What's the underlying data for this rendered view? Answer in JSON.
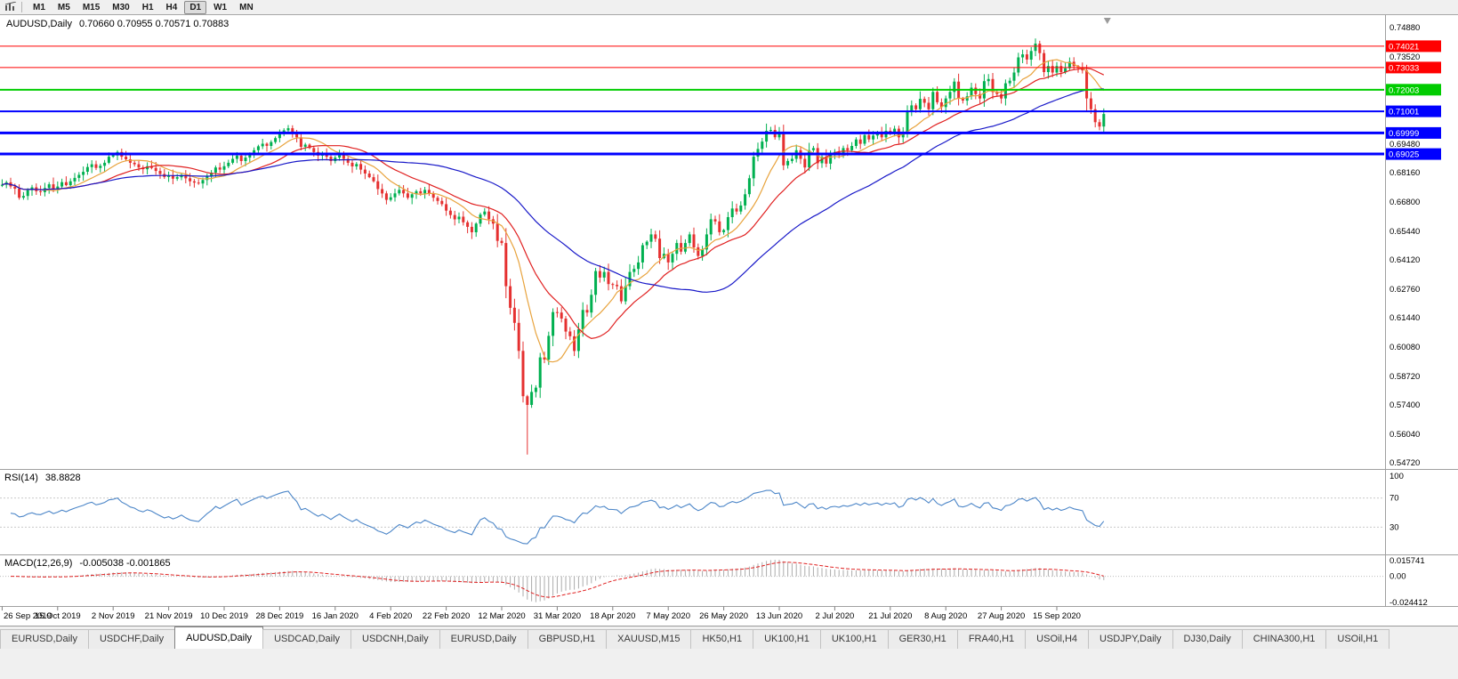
{
  "toolbar": {
    "timeframes": [
      "M1",
      "M5",
      "M15",
      "M30",
      "H1",
      "H4",
      "D1",
      "W1",
      "MN"
    ],
    "active_timeframe": "D1"
  },
  "chart": {
    "title": "AUDUSD,Daily",
    "ohlc": "0.70660 0.70955 0.70571 0.70883",
    "colors": {
      "up": "#00B050",
      "down": "#E53030",
      "macd_hist": "#ababab",
      "macd_signal": "#e02020"
    },
    "axis_labels": [
      "0.74880",
      "0.73520",
      "0.69480",
      "0.68160",
      "0.66800",
      "0.65440",
      "0.64120",
      "0.62760",
      "0.61440",
      "0.60080",
      "0.58720",
      "0.57400",
      "0.56040",
      "0.54720"
    ],
    "hlines": [
      {
        "price": 0.74021,
        "color": "#FF0000",
        "width": 1,
        "label": "0.74021"
      },
      {
        "price": 0.73033,
        "color": "#FF0000",
        "width": 1,
        "label": "0.73033"
      },
      {
        "price": 0.72003,
        "color": "#00CC00",
        "width": 2,
        "label": "0.72003"
      },
      {
        "price": 0.71001,
        "color": "#0000FF",
        "width": 2,
        "label": "0.71001"
      },
      {
        "price": 0.69999,
        "color": "#0000FF",
        "width": 3,
        "label": "0.69999"
      },
      {
        "price": 0.69025,
        "color": "#0000FF",
        "width": 3,
        "label": "0.69025"
      }
    ]
  },
  "chart_data": {
    "type": "candlestick",
    "symbol": "AUDUSD",
    "timeframe": "Daily",
    "ohlc_display": {
      "open": "0.70660",
      "high": "0.70955",
      "low": "0.70571",
      "close": "0.70883"
    },
    "ylim": [
      0.5443,
      0.7546
    ],
    "first_open": 0.6755,
    "closes": [
      0.676,
      0.6771,
      0.6752,
      0.6742,
      0.67,
      0.6708,
      0.6735,
      0.6748,
      0.673,
      0.6726,
      0.6745,
      0.6762,
      0.6738,
      0.6752,
      0.6772,
      0.6758,
      0.6776,
      0.6792,
      0.6806,
      0.682,
      0.6842,
      0.6855,
      0.6838,
      0.6848,
      0.6862,
      0.689,
      0.6896,
      0.6912,
      0.689,
      0.6878,
      0.6862,
      0.6855,
      0.684,
      0.6832,
      0.6846,
      0.6838,
      0.6824,
      0.681,
      0.6796,
      0.6802,
      0.6788,
      0.6795,
      0.6806,
      0.679,
      0.6776,
      0.677,
      0.6766,
      0.6782,
      0.68,
      0.6816,
      0.684,
      0.683,
      0.6846,
      0.6862,
      0.688,
      0.6895,
      0.687,
      0.6886,
      0.6902,
      0.692,
      0.6938,
      0.695,
      0.694,
      0.6958,
      0.6976,
      0.6995,
      0.7012,
      0.7022,
      0.7,
      0.698,
      0.6936,
      0.6946,
      0.693,
      0.6912,
      0.6895,
      0.6906,
      0.689,
      0.687,
      0.6886,
      0.69,
      0.688,
      0.6862,
      0.6845,
      0.6856,
      0.683,
      0.6812,
      0.6795,
      0.6776,
      0.674,
      0.672,
      0.669,
      0.6702,
      0.672,
      0.6736,
      0.672,
      0.67,
      0.6716,
      0.673,
      0.672,
      0.6736,
      0.672,
      0.67,
      0.6685,
      0.667,
      0.664,
      0.662,
      0.66,
      0.6612,
      0.6586,
      0.6565,
      0.654,
      0.658,
      0.6622,
      0.6636,
      0.66,
      0.658,
      0.65,
      0.649,
      0.629,
      0.619,
      0.612,
      0.599,
      0.578,
      0.574,
      0.58,
      0.582,
      0.596,
      0.595,
      0.606,
      0.617,
      0.6168,
      0.614,
      0.608,
      0.6058,
      0.599,
      0.609,
      0.618,
      0.6168,
      0.625,
      0.636,
      0.633,
      0.6356,
      0.63,
      0.6296,
      0.629,
      0.622,
      0.629,
      0.6356,
      0.637,
      0.64,
      0.648,
      0.6496,
      0.653,
      0.651,
      0.642,
      0.644,
      0.64,
      0.644,
      0.649,
      0.645,
      0.649,
      0.653,
      0.647,
      0.643,
      0.646,
      0.653,
      0.66,
      0.659,
      0.654,
      0.655,
      0.661,
      0.665,
      0.6636,
      0.6664,
      0.6716,
      0.679,
      0.689,
      0.6926,
      0.696,
      0.701,
      0.7014,
      0.698,
      0.7,
      0.685,
      0.687,
      0.688,
      0.692,
      0.688,
      0.684,
      0.692,
      0.693,
      0.686,
      0.689,
      0.6858,
      0.69,
      0.6912,
      0.69,
      0.693,
      0.692,
      0.694,
      0.697,
      0.695,
      0.699,
      0.697,
      0.6988,
      0.7,
      0.698,
      0.701,
      0.7,
      0.702,
      0.698,
      0.7,
      0.71,
      0.7128,
      0.711,
      0.7158,
      0.714,
      0.711,
      0.719,
      0.7142,
      0.712,
      0.716,
      0.719,
      0.7238,
      0.716,
      0.715,
      0.717,
      0.721,
      0.718,
      0.716,
      0.724,
      0.725,
      0.719,
      0.718,
      0.716,
      0.723,
      0.7242,
      0.728,
      0.735,
      0.7364,
      0.734,
      0.738,
      0.7414,
      0.737,
      0.7282,
      0.731,
      0.728,
      0.731,
      0.7282,
      0.73,
      0.733,
      0.731,
      0.73,
      0.729,
      0.716,
      0.711,
      0.705,
      0.703,
      0.7088
    ],
    "overrides": [
      {
        "i": 123,
        "low": 0.551
      },
      {
        "i": 242,
        "high": 0.7438
      }
    ],
    "moving_averages": [
      {
        "period": 10,
        "color": "#E8A33D"
      },
      {
        "period": 21,
        "color": "#E02020"
      },
      {
        "period": 50,
        "color": "#1818C8"
      }
    ],
    "date_labels": [
      "26 Sep 2019",
      "15 Oct 2019",
      "2 Nov 2019",
      "21 Nov 2019",
      "10 Dec 2019",
      "28 Dec 2019",
      "16 Jan 2020",
      "4 Feb 2020",
      "22 Feb 2020",
      "12 Mar 2020",
      "31 Mar 2020",
      "18 Apr 2020",
      "7 May 2020",
      "26 May 2020",
      "13 Jun 2020",
      "2 Jul 2020",
      "21 Jul 2020",
      "8 Aug 2020",
      "27 Aug 2020",
      "15 Sep 2020"
    ],
    "bars_per_label": 13,
    "rsi": {
      "label": "RSI(14)",
      "value": "38.8828",
      "period": 14,
      "levels": [
        70,
        30
      ],
      "axis_labels": [
        "100",
        "70",
        "30"
      ],
      "color": "#4C86C8"
    },
    "macd": {
      "label": "MACD(12,26,9)",
      "values": "-0.005038 -0.001865",
      "fast": 12,
      "slow": 26,
      "signal": 9,
      "axis_max": 0.015741,
      "axis_min": -0.024412,
      "axis_labels": [
        "0.015741",
        "0.00",
        "-0.024412"
      ]
    }
  },
  "tabs": {
    "active_index": 2,
    "items": [
      "EURUSD,Daily",
      "USDCHF,Daily",
      "AUDUSD,Daily",
      "USDCAD,Daily",
      "USDCNH,Daily",
      "EURUSD,Daily",
      "GBPUSD,H1",
      "XAUUSD,M15",
      "HK50,H1",
      "UK100,H1",
      "UK100,H1",
      "GER30,H1",
      "FRA40,H1",
      "USOil,H4",
      "USDJPY,Daily",
      "DJ30,Daily",
      "CHINA300,H1",
      "USOil,H1"
    ]
  }
}
